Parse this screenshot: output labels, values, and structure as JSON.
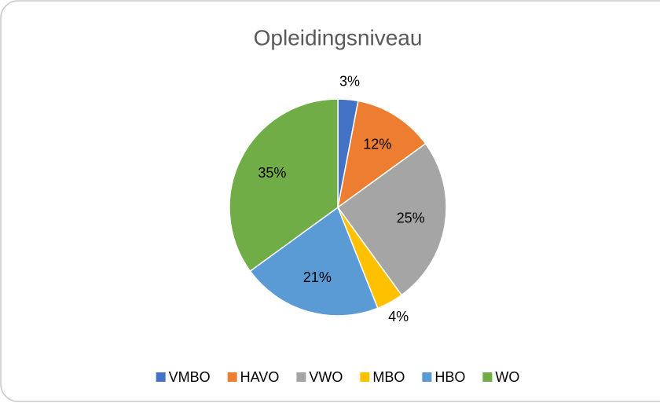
{
  "chart_data": {
    "type": "pie",
    "title": "Opleidingsniveau",
    "categories": [
      "VMBO",
      "HAVO",
      "VWO",
      "MBO",
      "HBO",
      "WO"
    ],
    "values": [
      3,
      12,
      25,
      4,
      21,
      35
    ],
    "value_labels": [
      "3%",
      "12%",
      "25%",
      "4%",
      "21%",
      "35%"
    ],
    "colors": [
      "#4472c4",
      "#ed7d31",
      "#a5a5a5",
      "#ffc000",
      "#5b9bd5",
      "#70ad47"
    ],
    "legend": "bottom"
  }
}
